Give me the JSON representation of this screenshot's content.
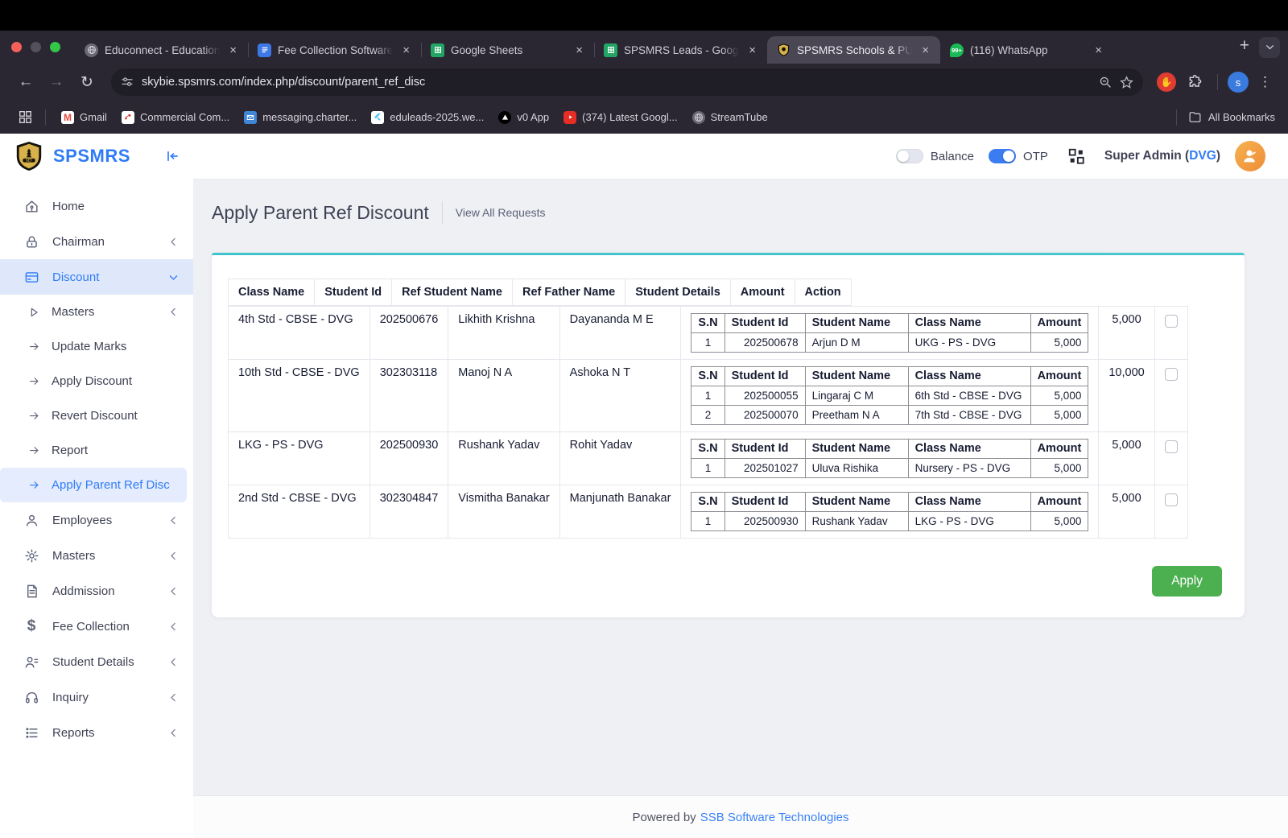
{
  "browser": {
    "tabs": [
      {
        "title": "Educonnect - Educationa",
        "icon": "globe-favicon",
        "active": false
      },
      {
        "title": "Fee Collection Software",
        "icon": "doc-favicon",
        "active": false
      },
      {
        "title": "Google Sheets",
        "icon": "sheets-favicon",
        "active": false
      },
      {
        "title": "SPSMRS Leads - Googl",
        "icon": "sheets-favicon",
        "active": false
      },
      {
        "title": "SPSMRS Schools & PU C",
        "icon": "shield-favicon",
        "active": true
      },
      {
        "title": "(116) WhatsApp",
        "icon": "whatsapp-favicon",
        "badge": "99+",
        "active": false
      }
    ],
    "url": "skybie.spsmrs.com/index.php/discount/parent_ref_disc",
    "profile_initial": "s",
    "bookmarks": [
      {
        "label": "Gmail",
        "icon": "gmail-favicon"
      },
      {
        "label": "Commercial Com...",
        "icon": "commercial-favicon"
      },
      {
        "label": "messaging.charter...",
        "icon": "mail-favicon"
      },
      {
        "label": "eduleads-2025.we...",
        "icon": "flutter-favicon"
      },
      {
        "label": "v0 App",
        "icon": "v0-favicon"
      },
      {
        "label": "(374) Latest Googl...",
        "icon": "youtube-favicon"
      },
      {
        "label": "StreamTube",
        "icon": "globe-favicon"
      }
    ],
    "all_bookmarks_label": "All Bookmarks"
  },
  "app": {
    "brand": "SPSMRS",
    "header": {
      "balance_label": "Balance",
      "otp_label": "OTP",
      "user_prefix": "Super Admin (",
      "user_branch": "DVG",
      "user_suffix": ")"
    },
    "sidebar": [
      {
        "id": "home",
        "label": "Home",
        "icon": "home-icon",
        "chevron": "none",
        "type": "top",
        "active": false
      },
      {
        "id": "chairman",
        "label": "Chairman",
        "icon": "lock-icon",
        "chevron": "left",
        "type": "top",
        "active": false
      },
      {
        "id": "discount",
        "label": "Discount",
        "icon": "card-icon",
        "chevron": "down",
        "type": "top",
        "active": true
      },
      {
        "id": "masters-sub",
        "label": "Masters",
        "icon": "triangle-right-icon",
        "chevron": "left",
        "type": "sub",
        "active": false
      },
      {
        "id": "update-marks",
        "label": "Update Marks",
        "icon": "arrow-right-icon",
        "chevron": "none",
        "type": "sub",
        "active": false
      },
      {
        "id": "apply-discount",
        "label": "Apply Discount",
        "icon": "arrow-right-icon",
        "chevron": "none",
        "type": "sub",
        "active": false
      },
      {
        "id": "revert-discount",
        "label": "Revert Discount",
        "icon": "arrow-right-icon",
        "chevron": "none",
        "type": "sub",
        "active": false
      },
      {
        "id": "report",
        "label": "Report",
        "icon": "arrow-right-icon",
        "chevron": "none",
        "type": "sub",
        "active": false
      },
      {
        "id": "apply-parent-ref-disc",
        "label": "Apply Parent Ref Disc",
        "icon": "arrow-right-icon",
        "chevron": "none",
        "type": "sub",
        "active": true
      },
      {
        "id": "employees",
        "label": "Employees",
        "icon": "user-icon",
        "chevron": "left",
        "type": "top",
        "active": false
      },
      {
        "id": "masters",
        "label": "Masters",
        "icon": "gear-icon",
        "chevron": "left",
        "type": "top",
        "active": false
      },
      {
        "id": "addmission",
        "label": "Addmission",
        "icon": "document-icon",
        "chevron": "left",
        "type": "top",
        "active": false
      },
      {
        "id": "fee-collection",
        "label": "Fee Collection",
        "icon": "dollar-icon",
        "chevron": "left",
        "type": "top",
        "active": false
      },
      {
        "id": "student-details",
        "label": "Student Details",
        "icon": "users-icon",
        "chevron": "left",
        "type": "top",
        "active": false
      },
      {
        "id": "inquiry",
        "label": "Inquiry",
        "icon": "headset-icon",
        "chevron": "left",
        "type": "top",
        "active": false
      },
      {
        "id": "reports",
        "label": "Reports",
        "icon": "list-icon",
        "chevron": "left",
        "type": "top",
        "active": false
      }
    ],
    "page": {
      "title": "Apply Parent Ref Discount",
      "view_all_label": "View All Requests"
    },
    "table": {
      "headers": [
        "Class Name",
        "Student Id",
        "Ref Student Name",
        "Ref Father Name",
        "Student Details",
        "Amount",
        "Action"
      ],
      "nested_headers": [
        "S.N",
        "Student Id",
        "Student Name",
        "Class Name",
        "Amount"
      ],
      "rows": [
        {
          "class_name": "4th Std - CBSE - DVG",
          "student_id": "202500676",
          "ref_student_name": "Likhith Krishna",
          "ref_father_name": "Dayananda M E",
          "details": [
            [
              "1",
              "202500678",
              "Arjun D M",
              "UKG - PS - DVG",
              "5,000"
            ]
          ],
          "amount": "5,000",
          "checked": false
        },
        {
          "class_name": "10th Std - CBSE - DVG",
          "student_id": "302303118",
          "ref_student_name": "Manoj N A",
          "ref_father_name": "Ashoka N T",
          "details": [
            [
              "1",
              "202500055",
              "Lingaraj C M",
              "6th Std - CBSE - DVG",
              "5,000"
            ],
            [
              "2",
              "202500070",
              "Preetham N A",
              "7th Std - CBSE - DVG",
              "5,000"
            ]
          ],
          "amount": "10,000",
          "checked": false
        },
        {
          "class_name": "LKG - PS - DVG",
          "student_id": "202500930",
          "ref_student_name": "Rushank Yadav",
          "ref_father_name": "Rohit Yadav",
          "details": [
            [
              "1",
              "202501027",
              "Uluva Rishika",
              "Nursery - PS - DVG",
              "5,000"
            ]
          ],
          "amount": "5,000",
          "checked": false
        },
        {
          "class_name": "2nd Std - CBSE - DVG",
          "student_id": "302304847",
          "ref_student_name": "Vismitha Banakar",
          "ref_father_name": "Manjunath Banakar",
          "details": [
            [
              "1",
              "202500930",
              "Rushank Yadav",
              "LKG - PS - DVG",
              "5,000"
            ]
          ],
          "amount": "5,000",
          "checked": false
        }
      ]
    },
    "apply_label": "Apply",
    "footer": {
      "text": "Powered by",
      "link": "SSB Software Technologies"
    },
    "colors": {
      "accent_blue": "#2f7bf6",
      "teal_bar": "#4ac6ce",
      "apply_green": "#4caf50",
      "toggle_on": "#3b7df0",
      "avatar_orange": "#ee8d3a"
    }
  }
}
